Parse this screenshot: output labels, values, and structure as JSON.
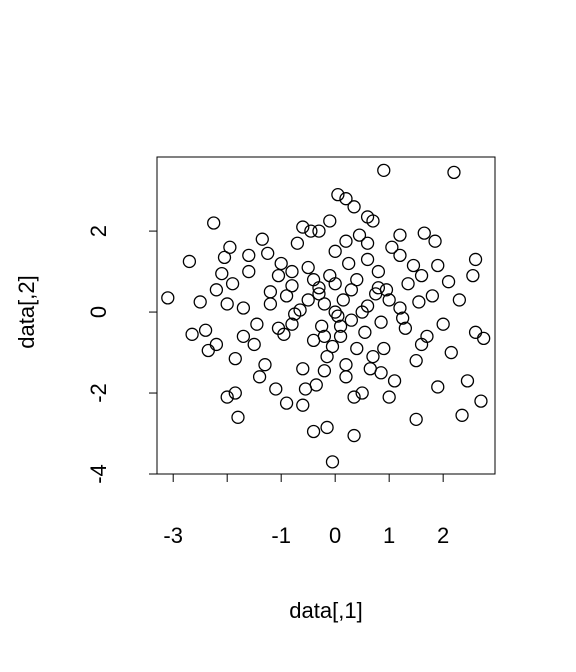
{
  "chart_data": {
    "type": "scatter",
    "xlabel": "data[,1]",
    "ylabel": "data[,2]",
    "color": "#000000",
    "xlim": [
      -3.3,
      2.96
    ],
    "ylim": [
      -4,
      3.83
    ],
    "xticks": [
      -3,
      {
        "value": -2,
        "label": null
      },
      -1,
      0,
      1,
      2
    ],
    "yticks": [
      -4,
      -2,
      0,
      2
    ],
    "x": [
      -3.1,
      -2.7,
      -2.25,
      -2.65,
      0.9,
      2.2,
      0.05,
      0.2,
      0.35,
      -0.05,
      0.35,
      -0.4,
      -0.15,
      1.5,
      2.35,
      2.7,
      -1.8,
      -1.85,
      -2.0,
      2.45,
      2.55,
      2.6,
      2.6,
      2.75,
      2.15,
      1.85,
      1.65,
      0.7,
      0.6,
      -0.6,
      -0.3,
      -0.1,
      -1.35,
      -1.95,
      -2.05,
      -2.35,
      -2.2,
      -2.4,
      -2.1,
      -1.9,
      -1.2,
      -0.8,
      -0.5,
      -0.2,
      0.1,
      0.4,
      0.7,
      1.0,
      1.3,
      1.6,
      -1.5,
      -1.0,
      -0.6,
      -0.3,
      0.0,
      0.3,
      0.6,
      0.9,
      1.2,
      1.5,
      -1.7,
      -1.3,
      -0.9,
      -0.4,
      -0.1,
      0.2,
      0.5,
      0.8,
      1.1,
      1.8,
      -0.7,
      -0.35,
      0.05,
      0.45,
      0.85,
      -1.1,
      1.35,
      -1.6,
      1.7,
      -2.0,
      0.15,
      -0.25,
      0.55,
      -0.65,
      0.95,
      -1.05,
      1.25,
      -1.45,
      1.55,
      -1.85,
      -0.15,
      0.25,
      -0.55,
      0.65,
      -0.95,
      1.05,
      -1.25,
      1.45,
      -0.45,
      0.35,
      2.0,
      2.3,
      -2.5,
      1.9,
      0.0,
      -0.8,
      0.75,
      -0.05,
      0.5,
      -0.6,
      -1.4,
      1.0,
      1.9,
      -1.6,
      0.2,
      -0.2,
      2.1,
      -2.2,
      1.2,
      -0.9,
      0.1,
      -0.75,
      0.6,
      -0.3,
      0.85,
      -1.05,
      1.6,
      -1.7,
      0.3,
      -0.5,
      0.0,
      0.4,
      -0.4,
      0.8,
      -0.8,
      1.2,
      -1.2,
      0.2,
      -0.2,
      0.6
    ],
    "y": [
      0.35,
      1.25,
      2.2,
      -0.55,
      3.5,
      3.45,
      2.9,
      2.8,
      2.6,
      -3.7,
      -3.05,
      -2.95,
      -2.85,
      -2.65,
      -2.55,
      -2.2,
      -2.6,
      -2.0,
      -2.1,
      -1.7,
      0.9,
      1.3,
      -0.5,
      -0.65,
      -1.0,
      1.75,
      1.95,
      2.25,
      2.35,
      2.1,
      2.0,
      2.25,
      1.8,
      1.6,
      1.35,
      -0.95,
      -0.8,
      -0.45,
      0.95,
      0.7,
      0.5,
      -0.3,
      1.1,
      0.2,
      -0.6,
      0.8,
      -1.1,
      0.3,
      -0.4,
      0.9,
      -0.8,
      1.2,
      -1.4,
      0.6,
      1.5,
      -0.2,
      1.3,
      -0.9,
      1.4,
      -1.2,
      0.1,
      -1.3,
      0.4,
      -0.7,
      0.9,
      -1.6,
      0.0,
      1.0,
      -1.7,
      0.4,
      1.7,
      -1.8,
      -0.1,
      1.9,
      -1.5,
      -1.9,
      0.7,
      1.0,
      -0.6,
      0.2,
      0.3,
      -0.35,
      -0.5,
      0.05,
      0.55,
      0.9,
      -0.15,
      -0.3,
      0.25,
      -1.15,
      -1.1,
      1.2,
      -1.9,
      -1.4,
      -0.55,
      1.6,
      1.45,
      1.15,
      2.0,
      -2.1,
      -0.3,
      0.3,
      0.25,
      1.15,
      0.7,
      0.65,
      0.45,
      -0.85,
      -2.0,
      -2.3,
      -1.6,
      -2.1,
      -1.85,
      1.4,
      1.75,
      -1.45,
      0.75,
      0.55,
      1.9,
      -2.25,
      -0.35,
      -0.05,
      0.15,
      0.45,
      -0.25,
      -0.4,
      -0.8,
      -0.6,
      0.55,
      0.3,
      0.0,
      -0.9,
      0.8,
      0.6,
      1.0,
      0.1,
      0.2,
      -1.3,
      -0.6,
      1.7
    ]
  }
}
